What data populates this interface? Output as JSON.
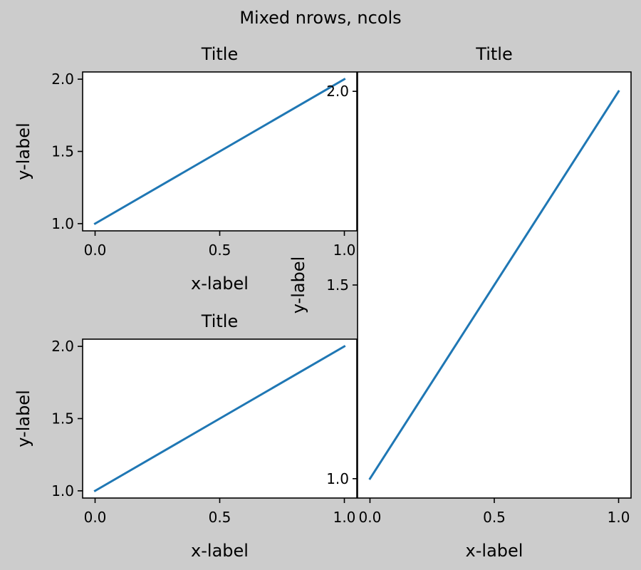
{
  "chart_data": {
    "suptitle": "Mixed nrows, ncols",
    "background": "#cccccc",
    "line_color": "#1f77b4",
    "panels": [
      {
        "type": "line",
        "title": "Title",
        "xlabel": "x-label",
        "ylabel": "y-label",
        "x": [
          0,
          1
        ],
        "y": [
          1,
          2
        ],
        "xlim": [
          -0.05,
          1.05
        ],
        "ylim": [
          0.95,
          2.05
        ],
        "xticks": [
          "0.0",
          "0.5",
          "1.0"
        ],
        "yticks": [
          "1.0",
          "1.5",
          "2.0"
        ],
        "position": "top-left",
        "grid": false
      },
      {
        "type": "line",
        "title": "Title",
        "xlabel": "x-label",
        "ylabel": "y-label",
        "x": [
          0,
          1
        ],
        "y": [
          1,
          2
        ],
        "xlim": [
          -0.05,
          1.05
        ],
        "ylim": [
          0.95,
          2.05
        ],
        "xticks": [
          "0.0",
          "0.5",
          "1.0"
        ],
        "yticks": [
          "1.0",
          "1.5",
          "2.0"
        ],
        "position": "bottom-left",
        "grid": false
      },
      {
        "type": "line",
        "title": "Title",
        "xlabel": "x-label",
        "ylabel": "y-label",
        "x": [
          0,
          1
        ],
        "y": [
          1,
          2
        ],
        "xlim": [
          -0.05,
          1.05
        ],
        "ylim": [
          0.95,
          2.05
        ],
        "xticks": [
          "0.0",
          "0.5",
          "1.0"
        ],
        "yticks": [
          "1.0",
          "1.5",
          "2.0"
        ],
        "position": "right, spanning both rows",
        "grid": false
      }
    ]
  }
}
